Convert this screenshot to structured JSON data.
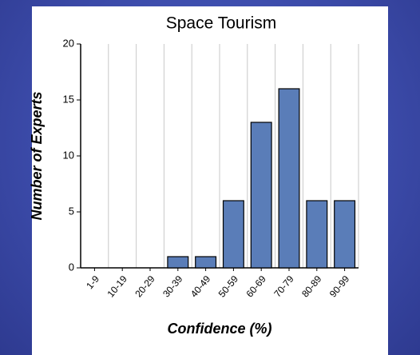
{
  "chart_data": {
    "type": "bar",
    "title": "Space Tourism",
    "x_label": "Confidence (%)",
    "y_label": "Number of Experts",
    "categories": [
      "1-9",
      "10-19",
      "20-29",
      "30-39",
      "40-49",
      "50-59",
      "60-69",
      "70-79",
      "80-89",
      "90-99"
    ],
    "values": [
      0,
      0,
      0,
      1,
      1,
      6,
      13,
      16,
      6,
      6
    ],
    "color": "#5a7db8",
    "ylim": [
      0,
      20
    ],
    "yticks": [
      0,
      5,
      10,
      15,
      20
    ],
    "grid": true
  }
}
